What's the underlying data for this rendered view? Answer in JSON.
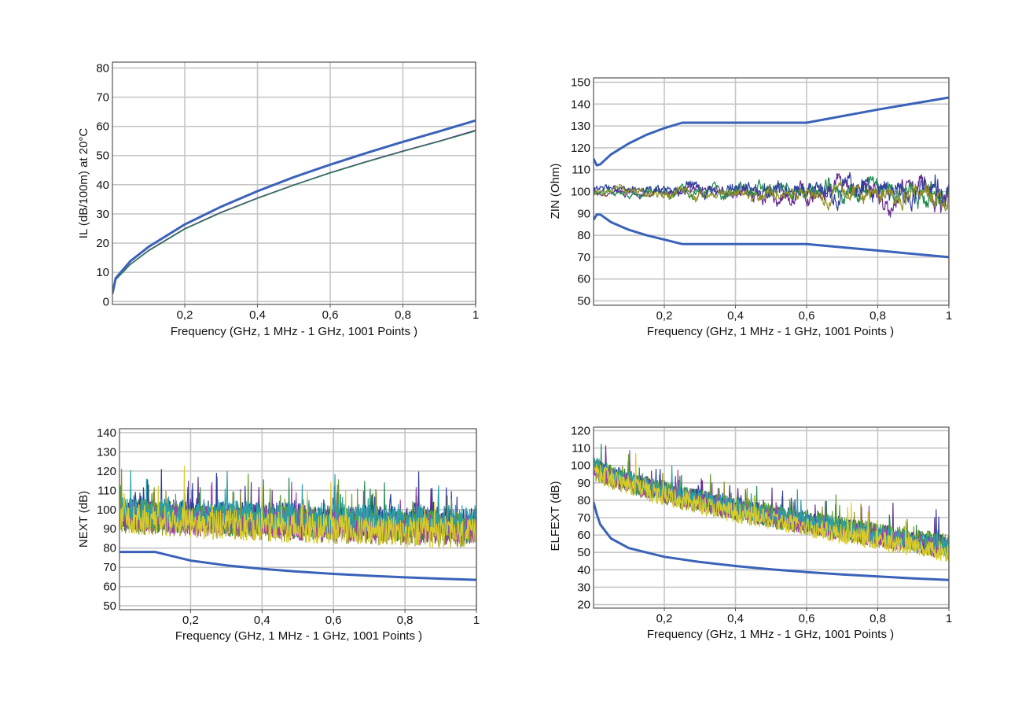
{
  "colors": {
    "limit": "#3a62b8",
    "traces": [
      "#6a2d91",
      "#1f8a4c",
      "#2e3f9c",
      "#8f8f25",
      "#5e9e2f",
      "#a33bb0",
      "#2aa0a8",
      "#d8cc2a"
    ],
    "grid": "#c6c6c6",
    "frame": "#555555"
  },
  "chart_data": [
    {
      "id": "il",
      "type": "line",
      "xlabel": "Frequency (GHz, 1 MHz - 1 GHz, 1001 Points )",
      "ylabel": "IL (dB/100m) at 20°C",
      "xlim": [
        0.001,
        1
      ],
      "ylim": [
        -1,
        82
      ],
      "xticks": [
        0.2,
        0.4,
        0.6,
        0.8,
        1
      ],
      "xtick_labels": [
        "0,2",
        "0,4",
        "0,6",
        "0,8",
        "1"
      ],
      "yticks": [
        0,
        10,
        20,
        30,
        40,
        50,
        60,
        70,
        80
      ],
      "grid": true,
      "series": [
        {
          "role": "limit",
          "x": [
            0.001,
            0.01,
            0.05,
            0.1,
            0.2,
            0.3,
            0.4,
            0.5,
            0.6,
            0.7,
            0.8,
            0.9,
            1.0
          ],
          "y": [
            2.7,
            8.0,
            13.8,
            18.7,
            26.4,
            32.5,
            37.8,
            42.6,
            46.9,
            50.9,
            54.7,
            58.3,
            62.0
          ]
        },
        {
          "role": "measured",
          "x": [
            0.001,
            0.01,
            0.05,
            0.1,
            0.2,
            0.3,
            0.4,
            0.5,
            0.6,
            0.7,
            0.8,
            0.9,
            1.0
          ],
          "y": [
            2.5,
            7.5,
            12.8,
            17.5,
            25.0,
            30.6,
            35.5,
            40.0,
            44.2,
            48.0,
            51.6,
            55.0,
            58.7
          ]
        },
        {
          "role": "measured",
          "x": [
            0.001,
            0.01,
            0.05,
            0.1,
            0.2,
            0.3,
            0.4,
            0.5,
            0.6,
            0.7,
            0.8,
            0.9,
            1.0
          ],
          "y": [
            2.5,
            7.4,
            12.6,
            17.3,
            24.8,
            30.4,
            35.3,
            39.8,
            44.0,
            47.8,
            51.4,
            54.8,
            58.4
          ]
        }
      ]
    },
    {
      "id": "zin",
      "type": "line",
      "xlabel": "Frequency (GHz, 1 MHz - 1 GHz, 1001 Points )",
      "ylabel": "ZIN (Ohm)",
      "xlim": [
        0.001,
        1
      ],
      "ylim": [
        48,
        152
      ],
      "xticks": [
        0.2,
        0.4,
        0.6,
        0.8,
        1
      ],
      "xtick_labels": [
        "0,2",
        "0,4",
        "0,6",
        "0,8",
        "1"
      ],
      "yticks": [
        50,
        60,
        70,
        80,
        90,
        100,
        110,
        120,
        130,
        140,
        150
      ],
      "grid": true,
      "series": [
        {
          "role": "limit",
          "x": [
            0.001,
            0.01,
            0.02,
            0.05,
            0.1,
            0.15,
            0.2,
            0.25,
            0.6,
            0.8,
            1.0
          ],
          "y": [
            115,
            112,
            112.5,
            117,
            122,
            126,
            129,
            131.5,
            131.5,
            137.5,
            143
          ]
        },
        {
          "role": "limit",
          "x": [
            0.001,
            0.01,
            0.02,
            0.05,
            0.1,
            0.15,
            0.2,
            0.25,
            0.6,
            0.8,
            1.0
          ],
          "y": [
            87,
            89.5,
            89.5,
            86,
            82.5,
            80,
            78,
            76,
            76,
            73,
            70
          ]
        },
        {
          "role": "measured",
          "noise": "zin",
          "base": 100,
          "amp_start": 2,
          "amp_end": 9,
          "seed": 11
        },
        {
          "role": "measured",
          "noise": "zin",
          "base": 100,
          "amp_start": 2,
          "amp_end": 8,
          "seed": 23
        },
        {
          "role": "measured",
          "noise": "zin",
          "base": 101,
          "amp_start": 2,
          "amp_end": 9,
          "seed": 37
        },
        {
          "role": "measured",
          "noise": "zin",
          "base": 99,
          "amp_start": 2,
          "amp_end": 7,
          "seed": 51
        }
      ]
    },
    {
      "id": "next",
      "type": "line",
      "xlabel": "Frequency (GHz, 1 MHz - 1 GHz, 1001 Points )",
      "ylabel": "NEXT (dB)",
      "xlim": [
        0.001,
        1
      ],
      "ylim": [
        48,
        142
      ],
      "xticks": [
        0.2,
        0.4,
        0.6,
        0.8,
        1
      ],
      "xtick_labels": [
        "0,2",
        "0,4",
        "0,6",
        "0,8",
        "1"
      ],
      "yticks": [
        50,
        60,
        70,
        80,
        90,
        100,
        110,
        120,
        130,
        140
      ],
      "grid": true,
      "series": [
        {
          "role": "limit",
          "x": [
            0.001,
            0.1,
            0.2,
            0.3,
            0.4,
            0.5,
            0.6,
            0.7,
            0.8,
            0.9,
            1.0
          ],
          "y": [
            78,
            78,
            73.5,
            71,
            69.2,
            67.8,
            66.6,
            65.6,
            64.8,
            64.1,
            63.5
          ]
        },
        {
          "role": "measured",
          "noise": "xtalk",
          "base_start": 98,
          "base_end": 92,
          "amp": 10,
          "seed": 3
        },
        {
          "role": "measured",
          "noise": "xtalk",
          "base_start": 97,
          "base_end": 90,
          "amp": 10,
          "seed": 7
        },
        {
          "role": "measured",
          "noise": "xtalk",
          "base_start": 99,
          "base_end": 93,
          "amp": 10,
          "seed": 13
        },
        {
          "role": "measured",
          "noise": "xtalk",
          "base_start": 96,
          "base_end": 88,
          "amp": 10,
          "seed": 19
        },
        {
          "role": "measured",
          "noise": "xtalk",
          "base_start": 98,
          "base_end": 91,
          "amp": 10,
          "seed": 29
        },
        {
          "role": "measured",
          "noise": "xtalk",
          "base_start": 97,
          "base_end": 89,
          "amp": 10,
          "seed": 41
        },
        {
          "role": "measured",
          "noise": "xtalk",
          "base_start": 99,
          "base_end": 94,
          "amp": 10,
          "seed": 47
        },
        {
          "role": "measured",
          "noise": "xtalk",
          "base_start": 96,
          "base_end": 87,
          "amp": 10,
          "seed": 59
        }
      ]
    },
    {
      "id": "elfext",
      "type": "line",
      "xlabel": "Frequency (GHz, 1 MHz - 1 GHz, 1001 Points )",
      "ylabel": "ELFEXT (dB)",
      "xlim": [
        0.001,
        1
      ],
      "ylim": [
        18,
        122
      ],
      "xticks": [
        0.2,
        0.4,
        0.6,
        0.8,
        1
      ],
      "xtick_labels": [
        "0,2",
        "0,4",
        "0,6",
        "0,8",
        "1"
      ],
      "yticks": [
        20,
        30,
        40,
        50,
        60,
        70,
        80,
        90,
        100,
        110,
        120
      ],
      "grid": true,
      "series": [
        {
          "role": "limit",
          "x": [
            0.001,
            0.01,
            0.02,
            0.05,
            0.1,
            0.2,
            0.3,
            0.4,
            0.5,
            0.6,
            0.7,
            0.8,
            0.9,
            1.0
          ],
          "y": [
            79,
            72,
            66,
            58,
            52.5,
            47.5,
            44.5,
            42.2,
            40.3,
            38.7,
            37.3,
            36.2,
            35.1,
            34.2
          ]
        },
        {
          "role": "measured",
          "noise": "xtalk",
          "base_start": 100,
          "base_end": 53,
          "amp": 7,
          "seed": 5
        },
        {
          "role": "measured",
          "noise": "xtalk",
          "base_start": 99,
          "base_end": 52,
          "amp": 7,
          "seed": 17
        },
        {
          "role": "measured",
          "noise": "xtalk",
          "base_start": 101,
          "base_end": 54,
          "amp": 7,
          "seed": 31
        },
        {
          "role": "measured",
          "noise": "xtalk",
          "base_start": 98,
          "base_end": 51,
          "amp": 7,
          "seed": 43
        },
        {
          "role": "measured",
          "noise": "xtalk",
          "base_start": 100,
          "base_end": 55,
          "amp": 7,
          "seed": 61
        },
        {
          "role": "measured",
          "noise": "xtalk",
          "base_start": 99,
          "base_end": 52,
          "amp": 7,
          "seed": 67
        },
        {
          "role": "measured",
          "noise": "xtalk",
          "base_start": 101,
          "base_end": 53,
          "amp": 7,
          "seed": 71
        },
        {
          "role": "measured",
          "noise": "xtalk",
          "base_start": 98,
          "base_end": 50,
          "amp": 7,
          "seed": 83
        }
      ]
    }
  ]
}
